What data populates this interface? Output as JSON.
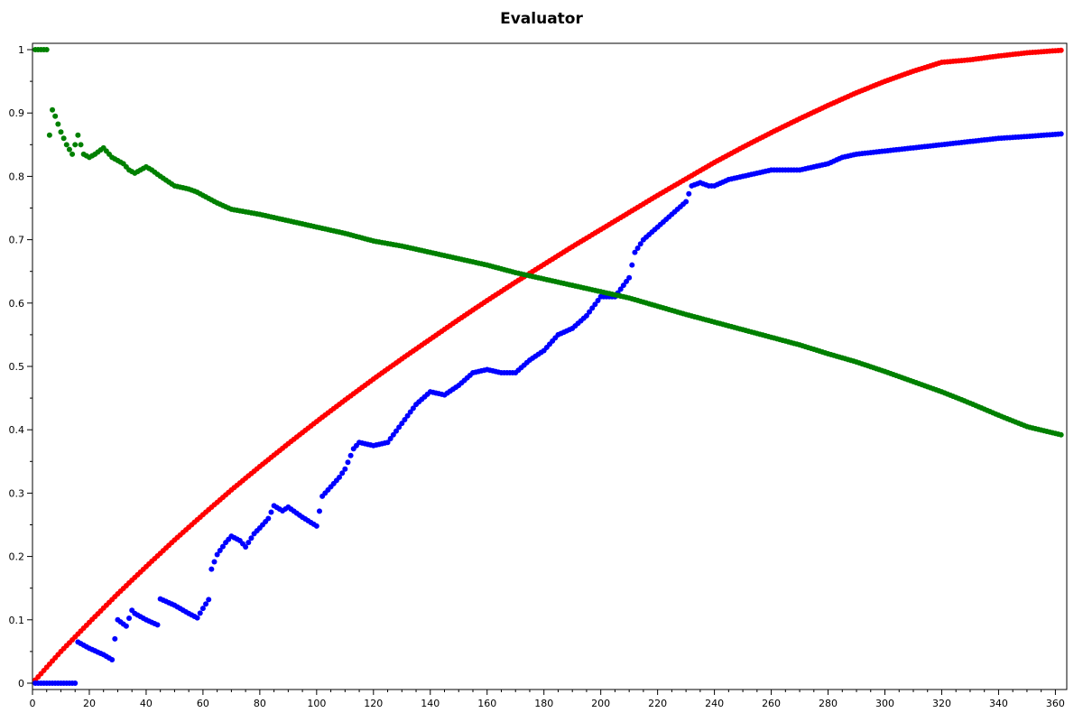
{
  "chart_data": {
    "type": "scatter",
    "title": "Evaluator",
    "xlabel": "",
    "ylabel": "",
    "xlim": [
      0,
      364
    ],
    "ylim": [
      -0.01,
      1.01
    ],
    "x_major_ticks": [
      0,
      20,
      40,
      60,
      80,
      100,
      120,
      140,
      160,
      180,
      200,
      220,
      240,
      260,
      280,
      300,
      320,
      340,
      360
    ],
    "y_major_ticks": [
      0,
      0.1,
      0.2,
      0.3,
      0.4,
      0.5,
      0.6,
      0.7,
      0.8,
      0.9,
      1
    ],
    "x_tick_labels": [
      "0",
      "20",
      "40",
      "60",
      "80",
      "100",
      "120",
      "140",
      "160",
      "180",
      "200",
      "220",
      "240",
      "260",
      "280",
      "300",
      "320",
      "340",
      "360"
    ],
    "y_tick_labels": [
      "0",
      "0.1",
      "0.2",
      "0.3",
      "0.4",
      "0.5",
      "0.6",
      "0.7",
      "0.8",
      "0.9",
      "1"
    ],
    "grid": false,
    "legend": "none",
    "series": [
      {
        "color": "#ff0000",
        "x": [
          1,
          10,
          20,
          30,
          40,
          50,
          60,
          70,
          80,
          90,
          100,
          110,
          120,
          130,
          140,
          150,
          160,
          170,
          180,
          190,
          200,
          210,
          220,
          230,
          240,
          250,
          260,
          270,
          280,
          290,
          300,
          310,
          320,
          330,
          340,
          350,
          362
        ],
        "y": [
          0.005,
          0.05,
          0.096,
          0.141,
          0.184,
          0.226,
          0.266,
          0.305,
          0.342,
          0.378,
          0.413,
          0.447,
          0.48,
          0.512,
          0.543,
          0.574,
          0.604,
          0.633,
          0.661,
          0.689,
          0.716,
          0.743,
          0.77,
          0.796,
          0.822,
          0.846,
          0.869,
          0.891,
          0.912,
          0.932,
          0.95,
          0.966,
          0.98,
          0.984,
          0.99,
          0.995,
          0.999
        ]
      },
      {
        "color": "#0000ff",
        "x": [
          1,
          5,
          10,
          15,
          16,
          20,
          25,
          28,
          29,
          30,
          33,
          35,
          36,
          40,
          44,
          45,
          50,
          55,
          58,
          60,
          62,
          63,
          65,
          68,
          70,
          73,
          75,
          78,
          80,
          83,
          85,
          88,
          90,
          95,
          100,
          102,
          105,
          108,
          110,
          113,
          115,
          120,
          125,
          130,
          135,
          140,
          145,
          150,
          155,
          160,
          165,
          170,
          175,
          180,
          185,
          190,
          195,
          200,
          205,
          210,
          212,
          215,
          220,
          225,
          230,
          232,
          235,
          238,
          240,
          245,
          250,
          255,
          260,
          265,
          270,
          275,
          280,
          285,
          290,
          300,
          310,
          320,
          330,
          340,
          350,
          362
        ],
        "y": [
          0,
          0,
          0,
          0,
          0.065,
          0.055,
          0.045,
          0.037,
          0.07,
          0.1,
          0.09,
          0.115,
          0.11,
          0.1,
          0.092,
          0.133,
          0.123,
          0.11,
          0.103,
          0.118,
          0.132,
          0.18,
          0.203,
          0.222,
          0.232,
          0.225,
          0.215,
          0.236,
          0.245,
          0.26,
          0.28,
          0.272,
          0.278,
          0.262,
          0.248,
          0.295,
          0.31,
          0.325,
          0.338,
          0.37,
          0.38,
          0.375,
          0.38,
          0.41,
          0.44,
          0.46,
          0.455,
          0.47,
          0.49,
          0.495,
          0.49,
          0.49,
          0.51,
          0.525,
          0.55,
          0.56,
          0.58,
          0.61,
          0.61,
          0.64,
          0.68,
          0.7,
          0.72,
          0.74,
          0.76,
          0.785,
          0.79,
          0.785,
          0.785,
          0.795,
          0.8,
          0.805,
          0.81,
          0.81,
          0.81,
          0.815,
          0.82,
          0.83,
          0.835,
          0.84,
          0.845,
          0.85,
          0.855,
          0.86,
          0.863,
          0.867
        ]
      },
      {
        "color": "#008000",
        "x": [
          1,
          3,
          5,
          6,
          7,
          8,
          10,
          12,
          14,
          16,
          18,
          20,
          22,
          25,
          28,
          30,
          32,
          34,
          36,
          38,
          40,
          42,
          45,
          50,
          55,
          58,
          60,
          65,
          70,
          80,
          90,
          100,
          110,
          120,
          130,
          140,
          150,
          160,
          170,
          180,
          190,
          200,
          210,
          220,
          230,
          240,
          250,
          260,
          270,
          280,
          290,
          300,
          310,
          320,
          330,
          340,
          350,
          362
        ],
        "y": [
          1,
          1,
          1,
          0.865,
          0.905,
          0.895,
          0.87,
          0.85,
          0.835,
          0.865,
          0.835,
          0.83,
          0.835,
          0.845,
          0.83,
          0.825,
          0.82,
          0.81,
          0.805,
          0.81,
          0.815,
          0.81,
          0.8,
          0.785,
          0.78,
          0.775,
          0.77,
          0.758,
          0.748,
          0.74,
          0.73,
          0.72,
          0.71,
          0.698,
          0.69,
          0.68,
          0.67,
          0.66,
          0.648,
          0.638,
          0.628,
          0.618,
          0.608,
          0.595,
          0.582,
          0.57,
          0.558,
          0.546,
          0.534,
          0.52,
          0.507,
          0.492,
          0.476,
          0.46,
          0.442,
          0.423,
          0.405,
          0.392
        ]
      }
    ]
  }
}
